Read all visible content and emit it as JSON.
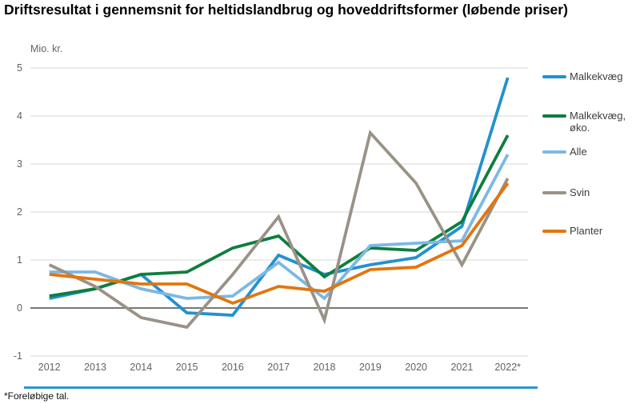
{
  "title": "Driftsresultat i gennemsnit for heltidslandbrug og hoveddriftsformer (løbende priser)",
  "y_axis_label": "Mio. kr.",
  "footnote": "*Foreløbige tal.",
  "colors": {
    "background": "#ffffff",
    "title_text": "#000000",
    "axis_text": "#63635d",
    "gridline": "#d9d9d9",
    "zero_line": "#4d4d45",
    "bottom_rule": "#2e95cf",
    "malkekvaeg": "#2291d0",
    "malkekvaeg_oko": "#0e7e3e",
    "alle": "#7cb8e4",
    "svin": "#9a9286",
    "planter": "#e3750e"
  },
  "chart_data": {
    "type": "line",
    "title": "Driftsresultat i gennemsnit for heltidslandbrug og hoveddriftsformer (løbende priser)",
    "ylabel": "Mio. kr.",
    "categories": [
      "2012",
      "2013",
      "2014",
      "2015",
      "2016",
      "2017",
      "2018",
      "2019",
      "2020",
      "2021",
      "2022*"
    ],
    "series": [
      {
        "name": "Malkekvæg",
        "color": "#2291d0",
        "values": [
          0.2,
          0.4,
          0.7,
          -0.1,
          -0.15,
          1.1,
          0.7,
          0.9,
          1.05,
          1.7,
          4.8
        ]
      },
      {
        "name": "Malkekvæg, øko.",
        "color": "#0e7e3e",
        "values": [
          0.25,
          0.4,
          0.7,
          0.75,
          1.25,
          1.5,
          0.65,
          1.25,
          1.2,
          1.8,
          3.6
        ]
      },
      {
        "name": "Alle",
        "color": "#7cb8e4",
        "values": [
          0.75,
          0.75,
          0.4,
          0.2,
          0.25,
          0.95,
          0.2,
          1.3,
          1.35,
          1.4,
          3.2
        ]
      },
      {
        "name": "Svin",
        "color": "#9a9286",
        "values": [
          0.9,
          0.45,
          -0.2,
          -0.4,
          0.7,
          1.9,
          -0.25,
          3.65,
          2.6,
          0.9,
          2.7
        ]
      },
      {
        "name": "Planter",
        "color": "#e3750e",
        "values": [
          0.7,
          0.6,
          0.5,
          0.5,
          0.1,
          0.45,
          0.35,
          0.8,
          0.85,
          1.3,
          2.6
        ]
      }
    ],
    "ylim": [
      -1,
      5
    ],
    "yticks": [
      5,
      4,
      3,
      2,
      1,
      0,
      -1
    ],
    "grid": true,
    "legend_position": "right",
    "footnote": "*Foreløbige tal."
  }
}
